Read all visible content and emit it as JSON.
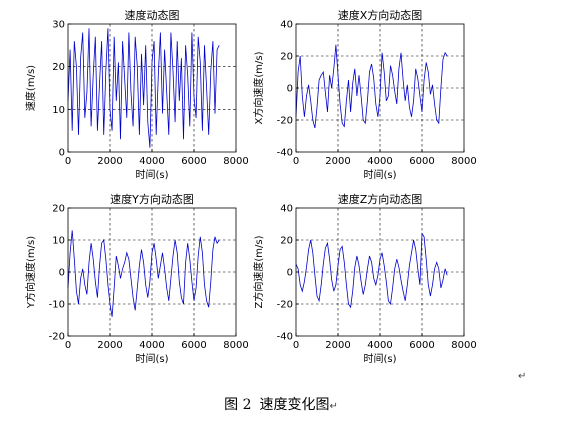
{
  "figure": {
    "caption_number": "图 2",
    "caption_text": "速度变化图",
    "return_mark": "↵"
  },
  "style": {
    "series_color": "#0000cc",
    "grid_color": "#000000"
  },
  "chart_data": [
    {
      "type": "line",
      "title": "速度动态图",
      "xlabel": "时间(s)",
      "ylabel": "速度(m/s)",
      "xlim": [
        0,
        8000
      ],
      "ylim": [
        0,
        30
      ],
      "xticks": [
        0,
        2000,
        4000,
        6000,
        8000
      ],
      "yticks": [
        0,
        10,
        20,
        30
      ],
      "grid": true,
      "series": [
        {
          "x": [
            0,
            100,
            200,
            300,
            400,
            500,
            600,
            700,
            800,
            900,
            1000,
            1100,
            1200,
            1300,
            1400,
            1500,
            1600,
            1700,
            1800,
            1900,
            2000,
            2100,
            2200,
            2300,
            2400,
            2500,
            2600,
            2700,
            2800,
            2900,
            3000,
            3100,
            3200,
            3300,
            3400,
            3500,
            3600,
            3700,
            3800,
            3900,
            4000,
            4100,
            4200,
            4300,
            4400,
            4500,
            4600,
            4700,
            4800,
            4900,
            5000,
            5100,
            5200,
            5300,
            5400,
            5500,
            5600,
            5700,
            5800,
            5900,
            6000,
            6100,
            6200,
            6300,
            6400,
            6500,
            6600,
            6700,
            6800,
            6900,
            7000,
            7100,
            7200
          ],
          "y": [
            12,
            24,
            5,
            26,
            20,
            4,
            22,
            28,
            8,
            14,
            29,
            6,
            18,
            27,
            5,
            16,
            26,
            4,
            19,
            29,
            10,
            5,
            27,
            12,
            21,
            3,
            26,
            17,
            8,
            28,
            14,
            6,
            27,
            20,
            4,
            23,
            11,
            25,
            7,
            1,
            21,
            26,
            4,
            18,
            28,
            9,
            24,
            14,
            4,
            28,
            19,
            7,
            26,
            12,
            22,
            3,
            25,
            18,
            6,
            28,
            13,
            8,
            27,
            21,
            5,
            25,
            15,
            4,
            19,
            26,
            9,
            24,
            25
          ]
        }
      ]
    },
    {
      "type": "line",
      "title": "速度X方向动态图",
      "xlabel": "时间(s)",
      "ylabel": "X方向速度(m/s)",
      "xlim": [
        0,
        8000
      ],
      "ylim": [
        -40,
        40
      ],
      "xticks": [
        0,
        2000,
        4000,
        6000,
        8000
      ],
      "yticks": [
        -40,
        -20,
        0,
        20,
        40
      ],
      "grid": true,
      "series": [
        {
          "x": [
            0,
            100,
            200,
            300,
            400,
            500,
            600,
            700,
            800,
            900,
            1000,
            1100,
            1200,
            1300,
            1400,
            1500,
            1600,
            1700,
            1800,
            1900,
            2000,
            2100,
            2200,
            2300,
            2400,
            2500,
            2600,
            2700,
            2800,
            2900,
            3000,
            3100,
            3200,
            3300,
            3400,
            3500,
            3600,
            3700,
            3800,
            3900,
            4000,
            4100,
            4200,
            4300,
            4400,
            4500,
            4600,
            4700,
            4800,
            4900,
            5000,
            5100,
            5200,
            5300,
            5400,
            5500,
            5600,
            5700,
            5800,
            5900,
            6000,
            6100,
            6200,
            6300,
            6400,
            6500,
            6600,
            6700,
            6800,
            6900,
            7000,
            7100,
            7200
          ],
          "y": [
            -18,
            10,
            20,
            -5,
            -18,
            -5,
            2,
            -8,
            -20,
            -25,
            -12,
            5,
            8,
            10,
            -3,
            -15,
            8,
            0,
            12,
            27,
            8,
            -10,
            -22,
            -24,
            -8,
            5,
            -15,
            3,
            12,
            -5,
            8,
            -5,
            -20,
            -22,
            -8,
            10,
            15,
            6,
            -10,
            -18,
            -5,
            22,
            10,
            -8,
            -5,
            14,
            8,
            -2,
            -10,
            12,
            22,
            5,
            -8,
            2,
            -12,
            -18,
            -8,
            12,
            6,
            -5,
            -15,
            5,
            16,
            10,
            -4,
            2,
            -10,
            -20,
            -22,
            0,
            18,
            22,
            20
          ]
        }
      ]
    },
    {
      "type": "line",
      "title": "速度Y方向动态图",
      "xlabel": "时间(s)",
      "ylabel": "Y方向速度(m/s)",
      "xlim": [
        0,
        8000
      ],
      "ylim": [
        -20,
        20
      ],
      "xticks": [
        0,
        2000,
        4000,
        6000,
        8000
      ],
      "yticks": [
        -20,
        -10,
        0,
        10,
        20
      ],
      "grid": true,
      "series": [
        {
          "x": [
            0,
            100,
            200,
            300,
            400,
            500,
            600,
            700,
            800,
            900,
            1000,
            1100,
            1200,
            1300,
            1400,
            1500,
            1600,
            1700,
            1800,
            1900,
            2000,
            2100,
            2200,
            2300,
            2400,
            2500,
            2600,
            2700,
            2800,
            2900,
            3000,
            3100,
            3200,
            3300,
            3400,
            3500,
            3600,
            3700,
            3800,
            3900,
            4000,
            4100,
            4200,
            4300,
            4400,
            4500,
            4600,
            4700,
            4800,
            4900,
            5000,
            5100,
            5200,
            5300,
            5400,
            5500,
            5600,
            5700,
            5800,
            5900,
            6000,
            6100,
            6200,
            6300,
            6400,
            6500,
            6600,
            6700,
            6800,
            6900,
            7000,
            7100,
            7200
          ],
          "y": [
            -5,
            6,
            13,
            4,
            -6,
            -10,
            -2,
            1,
            -4,
            -7,
            3,
            9,
            4,
            -3,
            -8,
            2,
            9,
            10,
            4,
            -4,
            -10,
            -14,
            -5,
            5,
            2,
            -2,
            1,
            3,
            6,
            4,
            -2,
            -8,
            -12,
            -5,
            2,
            7,
            3,
            -4,
            -8,
            -3,
            6,
            9,
            4,
            -2,
            2,
            6,
            1,
            -5,
            -9,
            -2,
            5,
            10,
            6,
            -3,
            -8,
            -10,
            3,
            9,
            4,
            -3,
            -9,
            -5,
            5,
            11,
            6,
            -4,
            -9,
            -11,
            -3,
            7,
            11,
            9,
            10
          ]
        }
      ]
    },
    {
      "type": "line",
      "title": "速度Z方向动态图",
      "xlabel": "时间(s)",
      "ylabel": "Z方向速度(m/s)",
      "xlim": [
        0,
        8000
      ],
      "ylim": [
        -40,
        40
      ],
      "xticks": [
        0,
        2000,
        4000,
        6000,
        8000
      ],
      "yticks": [
        -40,
        -20,
        0,
        20,
        40
      ],
      "grid": true,
      "series": [
        {
          "x": [
            0,
            100,
            200,
            300,
            400,
            500,
            600,
            700,
            800,
            900,
            1000,
            1100,
            1200,
            1300,
            1400,
            1500,
            1600,
            1700,
            1800,
            1900,
            2000,
            2100,
            2200,
            2300,
            2400,
            2500,
            2600,
            2700,
            2800,
            2900,
            3000,
            3100,
            3200,
            3300,
            3400,
            3500,
            3600,
            3700,
            3800,
            3900,
            4000,
            4100,
            4200,
            4300,
            4400,
            4500,
            4600,
            4700,
            4800,
            4900,
            5000,
            5100,
            5200,
            5300,
            5400,
            5500,
            5600,
            5700,
            5800,
            5900,
            6000,
            6100,
            6200,
            6300,
            6400,
            6500,
            6600,
            6700,
            6800,
            6900,
            7000,
            7100,
            7200
          ],
          "y": [
            5,
            2,
            -8,
            -12,
            -6,
            3,
            14,
            20,
            12,
            -2,
            -15,
            -18,
            -8,
            5,
            15,
            18,
            8,
            -5,
            -12,
            -8,
            4,
            14,
            16,
            6,
            -8,
            -20,
            -22,
            -12,
            3,
            10,
            4,
            -6,
            -14,
            -8,
            2,
            10,
            6,
            -4,
            -8,
            -2,
            8,
            12,
            4,
            -6,
            -18,
            -20,
            -10,
            2,
            8,
            3,
            -5,
            -12,
            -18,
            -8,
            4,
            12,
            20,
            14,
            2,
            -8,
            24,
            22,
            8,
            -8,
            -15,
            -8,
            2,
            6,
            2,
            -10,
            -5,
            2,
            -2
          ]
        }
      ]
    }
  ]
}
